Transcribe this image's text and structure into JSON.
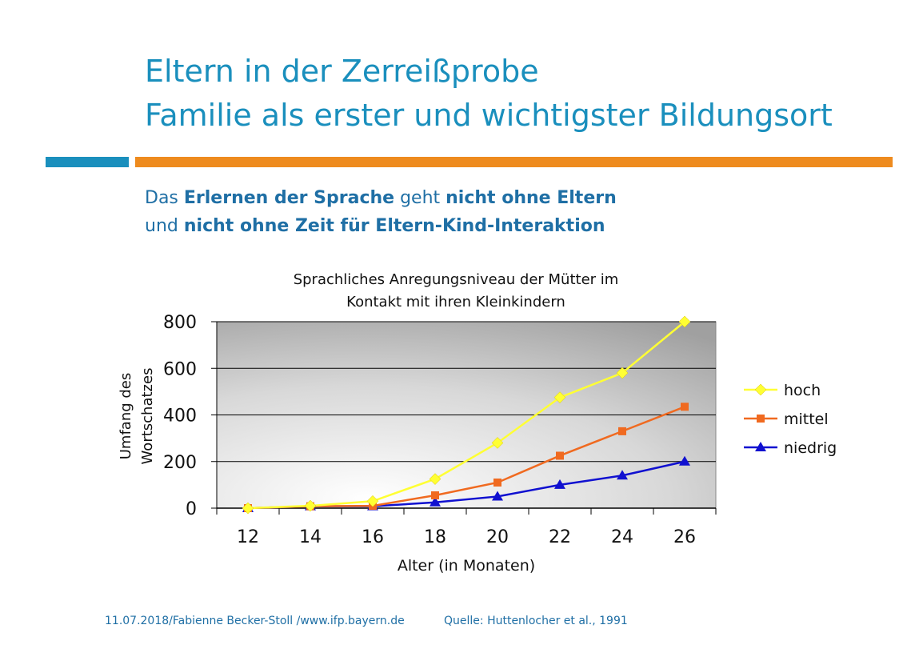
{
  "slide": {
    "title_line1": "Eltern in der Zerreißprobe",
    "title_line2": "Familie als erster und wichtigster Bildungsort",
    "subtitle": {
      "l1_a": "Das ",
      "l1_b": "Erlernen der Sprache",
      "l1_c": " geht ",
      "l1_d": "nicht ohne Eltern",
      "l2_a": "und ",
      "l2_b": "nicht ohne Zeit für Eltern-Kind-Interaktion"
    },
    "footer_left": "11.07.2018/Fabienne Becker-Stoll /www.ifp.bayern.de",
    "footer_right": "Quelle: Huttenlocher  et al., 1991",
    "colors": {
      "accent_blue": "#1a8fbd",
      "accent_orange": "#ee8b1e"
    }
  },
  "chart_data": {
    "type": "line",
    "title_line1": "Sprachliches Anregungsniveau der Mütter im",
    "title_line2": "Kontakt mit ihren Kleinkindern",
    "xlabel": "Alter (in Monaten)",
    "ylabel_line1": "Umfang des",
    "ylabel_line2": "Wortschatzes",
    "x": [
      12,
      14,
      16,
      18,
      20,
      22,
      24,
      26
    ],
    "y_ticks": [
      0,
      200,
      400,
      600,
      800
    ],
    "ylim": [
      0,
      800
    ],
    "grid": true,
    "legend_position": "right",
    "series": [
      {
        "name": "hoch",
        "color": "#ffff33",
        "marker": "diamond",
        "values": [
          0,
          10,
          30,
          125,
          280,
          475,
          580,
          800
        ]
      },
      {
        "name": "mittel",
        "color": "#f06a20",
        "marker": "square",
        "values": [
          0,
          8,
          10,
          55,
          110,
          225,
          330,
          435
        ]
      },
      {
        "name": "niedrig",
        "color": "#1010d0",
        "marker": "triangle",
        "values": [
          0,
          8,
          8,
          25,
          50,
          100,
          140,
          200
        ]
      }
    ]
  }
}
